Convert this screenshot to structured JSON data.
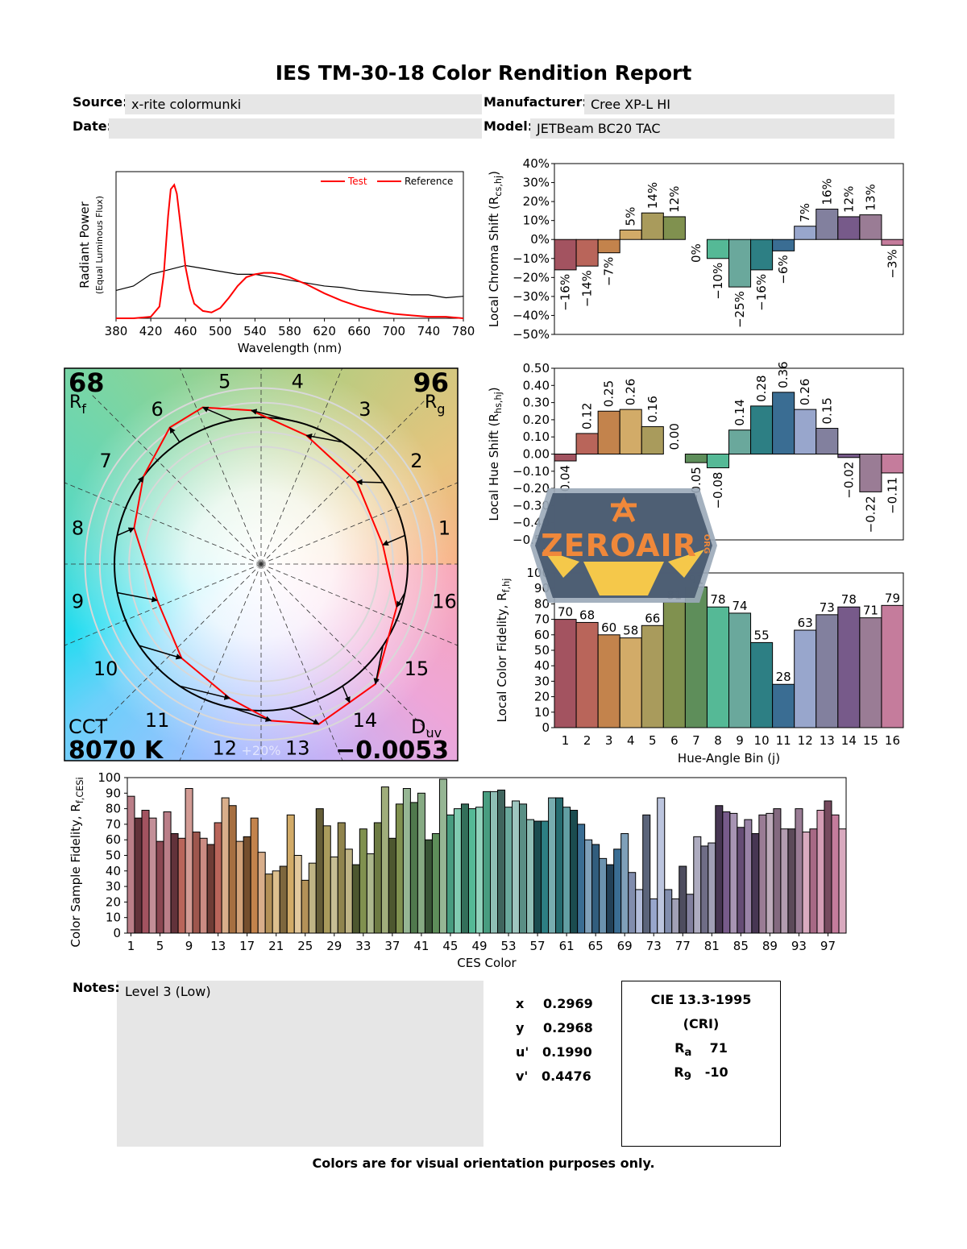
{
  "header": {
    "title": "IES TM-30-18 Color Rendition Report",
    "source_label": "Source:",
    "source": "x-rite colormunki",
    "manufacturer_label": "Manufacturer:",
    "manufacturer": "Cree XP-L HI",
    "date_label": "Date:",
    "date": "",
    "model_label": "Model:",
    "model": "JETBeam BC20 TAC"
  },
  "bin_colors": [
    "#a35360",
    "#b9655a",
    "#c3834c",
    "#d2ab68",
    "#a99b5c",
    "#80914f",
    "#5e8e5a",
    "#55b996",
    "#6aa89c",
    "#2d7f84",
    "#3a6d93",
    "#98a6cc",
    "#82809e",
    "#775a8a",
    "#9a7c95",
    "#c57c9c"
  ],
  "chart_data": [
    {
      "type": "line",
      "xlabel": "Wavelength (nm)",
      "ylabel": "Radiant Power",
      "ylabel2": "(Equal Luminous Flux)",
      "xlim": [
        380,
        780
      ],
      "xticks": [
        380,
        420,
        460,
        500,
        540,
        580,
        620,
        660,
        700,
        740,
        780
      ],
      "ylim": [
        0,
        1
      ],
      "legend": "top-right",
      "series": [
        {
          "name": "Test",
          "color": "#ff0000",
          "x": [
            380,
            400,
            420,
            430,
            435,
            440,
            443,
            447,
            450,
            455,
            460,
            465,
            470,
            480,
            490,
            500,
            510,
            520,
            530,
            540,
            550,
            560,
            570,
            580,
            600,
            620,
            640,
            660,
            680,
            700,
            720,
            740,
            760,
            780
          ],
          "y": [
            0.0,
            0.0,
            0.01,
            0.08,
            0.3,
            0.7,
            0.88,
            0.91,
            0.85,
            0.6,
            0.35,
            0.2,
            0.1,
            0.05,
            0.04,
            0.07,
            0.14,
            0.22,
            0.28,
            0.3,
            0.31,
            0.31,
            0.3,
            0.28,
            0.23,
            0.17,
            0.12,
            0.08,
            0.05,
            0.03,
            0.02,
            0.01,
            0.01,
            0.0
          ]
        },
        {
          "name": "Reference",
          "color": "#000000",
          "x": [
            380,
            400,
            420,
            440,
            460,
            480,
            500,
            520,
            540,
            560,
            580,
            600,
            620,
            640,
            660,
            680,
            700,
            720,
            740,
            760,
            780
          ],
          "y": [
            0.19,
            0.22,
            0.3,
            0.33,
            0.36,
            0.34,
            0.32,
            0.3,
            0.3,
            0.28,
            0.26,
            0.24,
            0.22,
            0.21,
            0.19,
            0.18,
            0.17,
            0.16,
            0.16,
            0.14,
            0.15
          ]
        }
      ]
    },
    {
      "type": "polar",
      "Rf": "68",
      "Rf_label": "R",
      "Rf_sub": "f",
      "Rg": "96",
      "Rg_label": "R",
      "Rg_sub": "g",
      "cct_label": "CCT",
      "cct": "8070 K",
      "duv_label": "D",
      "duv_sub": "uv",
      "duv": "-0.0053",
      "ring_label": "+20%",
      "bins": [
        "1",
        "2",
        "3",
        "4",
        "5",
        "6",
        "7",
        "8",
        "9",
        "10",
        "11",
        "12",
        "13",
        "14",
        "15",
        "16"
      ],
      "test_color": "#ff0000",
      "reference_color": "#000000"
    },
    {
      "type": "bar",
      "ylabel": "Local Chroma Shift (R",
      "ylabel_sub": "cs,hj",
      "ylabel_tail": ")",
      "ylim": [
        -50,
        40
      ],
      "yticks": [
        40,
        30,
        20,
        10,
        0,
        -10,
        -20,
        -30,
        -40,
        -50
      ],
      "unit": "%",
      "categories": [
        "1",
        "2",
        "3",
        "4",
        "5",
        "6",
        "7",
        "8",
        "9",
        "10",
        "11",
        "12",
        "13",
        "14",
        "15",
        "16"
      ],
      "values": [
        -16,
        -14,
        -7,
        5,
        14,
        12,
        0,
        -10,
        -25,
        -16,
        -6,
        7,
        16,
        12,
        13,
        -3
      ]
    },
    {
      "type": "bar",
      "ylabel": "Local Hue Shift (R",
      "ylabel_sub": "hs,hj",
      "ylabel_tail": ")",
      "ylim": [
        -0.5,
        0.5
      ],
      "yticks": [
        0.5,
        0.4,
        0.3,
        0.2,
        0.1,
        0.0,
        -0.1,
        -0.2,
        -0.3,
        -0.4,
        -0.5
      ],
      "categories": [
        "1",
        "2",
        "3",
        "4",
        "5",
        "6",
        "7",
        "8",
        "9",
        "10",
        "11",
        "12",
        "13",
        "14",
        "15",
        "16"
      ],
      "values": [
        -0.04,
        0.12,
        0.25,
        0.26,
        0.16,
        0.0,
        -0.05,
        -0.08,
        0.14,
        0.28,
        0.36,
        0.26,
        0.15,
        -0.02,
        -0.22,
        -0.11
      ]
    },
    {
      "type": "bar",
      "ylabel": "Local Color Fidelity, R",
      "ylabel_sub": "f,hj",
      "ylabel_tail": "",
      "xlabel": "Hue-Angle Bin (j)",
      "ylim": [
        0,
        100
      ],
      "yticks": [
        100,
        90,
        80,
        70,
        60,
        50,
        40,
        30,
        20,
        10,
        0
      ],
      "categories": [
        "1",
        "2",
        "3",
        "4",
        "5",
        "6",
        "7",
        "8",
        "9",
        "10",
        "11",
        "12",
        "13",
        "14",
        "15",
        "16"
      ],
      "values": [
        70,
        68,
        60,
        58,
        66,
        81,
        91,
        78,
        74,
        55,
        28,
        63,
        73,
        78,
        71,
        79
      ]
    },
    {
      "type": "bar",
      "ylabel": "Color Sample Fidelity, R",
      "ylabel_sub": "f,CESi",
      "ylabel_tail": "",
      "xlabel": "CES Color",
      "ylim": [
        0,
        100
      ],
      "yticks": [
        100,
        90,
        80,
        70,
        60,
        50,
        40,
        30,
        20,
        10,
        0
      ],
      "xticks": [
        1,
        5,
        9,
        13,
        17,
        21,
        25,
        29,
        33,
        37,
        41,
        45,
        49,
        53,
        57,
        61,
        65,
        69,
        73,
        77,
        81,
        85,
        89,
        93,
        97
      ],
      "values": [
        88,
        74,
        79,
        74,
        59,
        78,
        64,
        61,
        93,
        65,
        61,
        57,
        71,
        87,
        82,
        59,
        62,
        74,
        52,
        38,
        40,
        43,
        76,
        50,
        34,
        45,
        80,
        69,
        49,
        71,
        54,
        44,
        67,
        51,
        71,
        94,
        61,
        83,
        93,
        84,
        90,
        60,
        64,
        99,
        76,
        80,
        83,
        80,
        81,
        91,
        91,
        92,
        81,
        85,
        83,
        73,
        72,
        72,
        87,
        87,
        81,
        79,
        70,
        60,
        57,
        48,
        44,
        54,
        64,
        39,
        28,
        76,
        22,
        87,
        28,
        22,
        43,
        25,
        62,
        56,
        58,
        82,
        78,
        77,
        68,
        73,
        64,
        76,
        77,
        80,
        67,
        67,
        80,
        65,
        67,
        79,
        85,
        76,
        67
      ]
    }
  ],
  "notes": {
    "label": "Notes:",
    "text": "Level 3 (Low)"
  },
  "chromaticity": [
    {
      "label": "x",
      "value": "0.2969"
    },
    {
      "label": "y",
      "value": "0.2968"
    },
    {
      "label": "u'",
      "value": "0.1990"
    },
    {
      "label": "v'",
      "value": "0.4476"
    }
  ],
  "cri": {
    "title": "CIE 13.3-1995",
    "subtitle": "(CRI)",
    "ra_label": "R",
    "ra_sub": "a",
    "ra": "71",
    "r9_label": "R",
    "r9_sub": "9",
    "r9": "-10"
  },
  "footer": "Colors are for visual orientation purposes only.",
  "watermark": {
    "text": "ZEROAIR",
    "suffix": "ORG"
  }
}
